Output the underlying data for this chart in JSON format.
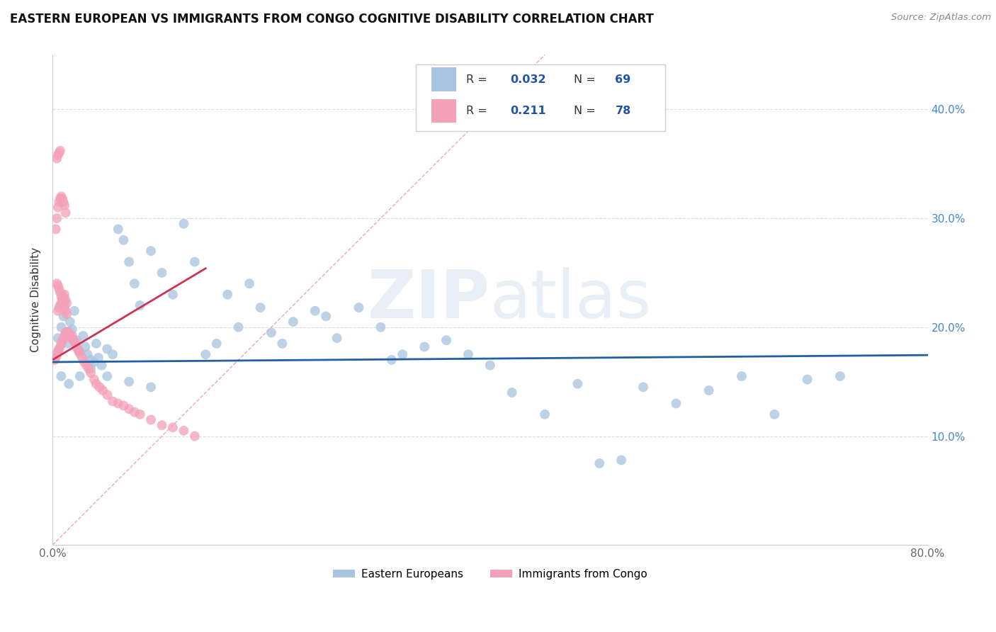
{
  "title": "EASTERN EUROPEAN VS IMMIGRANTS FROM CONGO COGNITIVE DISABILITY CORRELATION CHART",
  "source": "Source: ZipAtlas.com",
  "ylabel": "Cognitive Disability",
  "watermark_bold": "ZIP",
  "watermark_light": "atlas",
  "xlim": [
    0,
    0.8
  ],
  "ylim": [
    0,
    0.45
  ],
  "color_eastern": "#a8c4e0",
  "color_congo": "#f4a0b8",
  "trendline_eastern": "#2060a0",
  "trendline_congo": "#cc3355",
  "diagonal_color": "#e8a0a8",
  "legend_r1": "0.032",
  "legend_n1": "69",
  "legend_r2": "0.211",
  "legend_n2": "78",
  "east_x": [
    0.005,
    0.008,
    0.01,
    0.012,
    0.014,
    0.016,
    0.018,
    0.02,
    0.022,
    0.025,
    0.028,
    0.03,
    0.032,
    0.035,
    0.038,
    0.04,
    0.042,
    0.045,
    0.05,
    0.055,
    0.06,
    0.065,
    0.07,
    0.075,
    0.08,
    0.09,
    0.1,
    0.11,
    0.12,
    0.13,
    0.14,
    0.15,
    0.16,
    0.17,
    0.18,
    0.19,
    0.2,
    0.21,
    0.22,
    0.24,
    0.25,
    0.26,
    0.28,
    0.3,
    0.31,
    0.32,
    0.34,
    0.36,
    0.38,
    0.4,
    0.42,
    0.45,
    0.48,
    0.5,
    0.52,
    0.54,
    0.57,
    0.6,
    0.63,
    0.66,
    0.69,
    0.72,
    0.008,
    0.015,
    0.025,
    0.035,
    0.05,
    0.07,
    0.09
  ],
  "east_y": [
    0.19,
    0.2,
    0.21,
    0.195,
    0.185,
    0.205,
    0.198,
    0.215,
    0.188,
    0.178,
    0.192,
    0.182,
    0.175,
    0.17,
    0.168,
    0.185,
    0.172,
    0.165,
    0.18,
    0.175,
    0.29,
    0.28,
    0.26,
    0.24,
    0.22,
    0.27,
    0.25,
    0.23,
    0.295,
    0.26,
    0.175,
    0.185,
    0.23,
    0.2,
    0.24,
    0.218,
    0.195,
    0.185,
    0.205,
    0.215,
    0.21,
    0.19,
    0.218,
    0.2,
    0.17,
    0.175,
    0.182,
    0.188,
    0.175,
    0.165,
    0.14,
    0.12,
    0.148,
    0.075,
    0.078,
    0.145,
    0.13,
    0.142,
    0.155,
    0.12,
    0.152,
    0.155,
    0.155,
    0.148,
    0.155,
    0.162,
    0.155,
    0.15,
    0.145
  ],
  "congo_x": [
    0.002,
    0.003,
    0.004,
    0.005,
    0.006,
    0.007,
    0.008,
    0.009,
    0.01,
    0.011,
    0.012,
    0.013,
    0.014,
    0.015,
    0.016,
    0.017,
    0.018,
    0.019,
    0.02,
    0.021,
    0.022,
    0.023,
    0.024,
    0.025,
    0.027,
    0.029,
    0.031,
    0.033,
    0.035,
    0.038,
    0.04,
    0.043,
    0.046,
    0.05,
    0.055,
    0.06,
    0.065,
    0.07,
    0.075,
    0.08,
    0.09,
    0.1,
    0.11,
    0.12,
    0.13,
    0.005,
    0.006,
    0.007,
    0.008,
    0.009,
    0.01,
    0.011,
    0.012,
    0.013,
    0.004,
    0.005,
    0.006,
    0.007,
    0.008,
    0.009,
    0.01,
    0.011,
    0.012,
    0.013,
    0.003,
    0.004,
    0.005,
    0.006,
    0.007,
    0.008,
    0.009,
    0.01,
    0.011,
    0.012,
    0.004,
    0.005,
    0.006,
    0.007
  ],
  "congo_y": [
    0.17,
    0.172,
    0.175,
    0.178,
    0.18,
    0.182,
    0.185,
    0.187,
    0.19,
    0.192,
    0.195,
    0.195,
    0.196,
    0.195,
    0.192,
    0.19,
    0.192,
    0.188,
    0.187,
    0.185,
    0.182,
    0.18,
    0.178,
    0.176,
    0.172,
    0.168,
    0.165,
    0.162,
    0.158,
    0.152,
    0.148,
    0.145,
    0.142,
    0.138,
    0.132,
    0.13,
    0.128,
    0.125,
    0.122,
    0.12,
    0.115,
    0.11,
    0.108,
    0.105,
    0.1,
    0.215,
    0.218,
    0.22,
    0.222,
    0.225,
    0.228,
    0.23,
    0.225,
    0.222,
    0.24,
    0.238,
    0.235,
    0.232,
    0.228,
    0.225,
    0.222,
    0.218,
    0.215,
    0.212,
    0.29,
    0.3,
    0.31,
    0.315,
    0.318,
    0.32,
    0.318,
    0.315,
    0.312,
    0.305,
    0.355,
    0.358,
    0.36,
    0.362
  ]
}
